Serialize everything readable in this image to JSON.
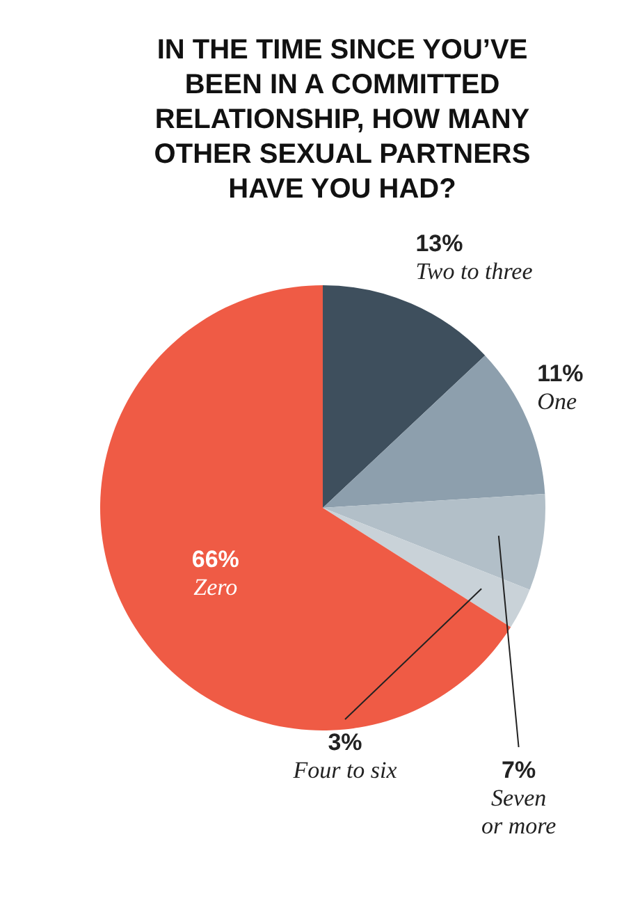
{
  "chart_data": {
    "type": "pie",
    "title": "IN THE TIME SINCE YOU’VE BEEN IN A COMMITTED RELATIONSHIP, HOW MANY OTHER SEXUAL PARTNERS HAVE YOU HAD?",
    "categories": [
      "Two to three",
      "One",
      "Seven or more",
      "Four to six",
      "Zero"
    ],
    "values": [
      13,
      11,
      7,
      3,
      66
    ],
    "value_labels": [
      "13%",
      "11%",
      "7%",
      "3%",
      "66%"
    ],
    "colors": [
      "#3e4f5d",
      "#8d9fad",
      "#b2bfc8",
      "#c9d2d8",
      "#ef5b45"
    ],
    "legend": false
  }
}
